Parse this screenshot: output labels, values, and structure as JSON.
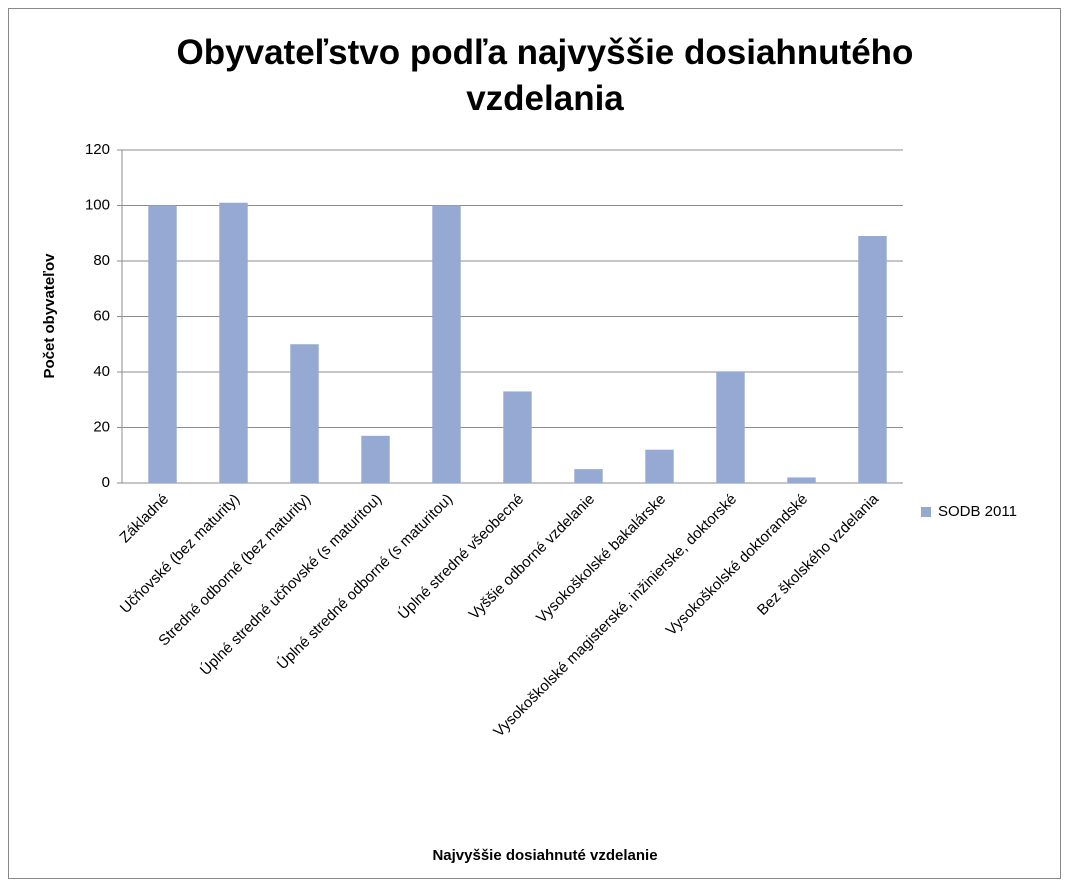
{
  "chart_data": {
    "type": "bar",
    "title": "Obyvateľstvo podľa najvyššie dosiahnutého vzdelania",
    "x_label": "Najvyššie dosiahnuté vzdelanie",
    "y_label": "Počet obyvateľov",
    "categories": [
      "Základné",
      "Učňovské (bez maturity)",
      "Stredné odborné (bez maturity)",
      "Úplné stredné učňovské (s maturitou)",
      "Úplné stredné odborné (s maturitou)",
      "Úplné stredné všeobecné",
      "Vyššie odborné vzdelanie",
      "Vysokoškolské bakalárske",
      "Vysokoškolské magisterské, inžinierske, doktorské",
      "Vysokoškolské doktorandské",
      "Bez školského vzdelania"
    ],
    "series": [
      {
        "name": "SODB 2011",
        "color": "#95a9d3",
        "values": [
          100,
          101,
          50,
          17,
          100,
          33,
          5,
          12,
          40,
          2,
          89
        ]
      }
    ],
    "ylim": [
      0,
      120
    ],
    "yticks": [
      0,
      20,
      40,
      60,
      80,
      100,
      120
    ],
    "grid": true,
    "legend": "right"
  }
}
